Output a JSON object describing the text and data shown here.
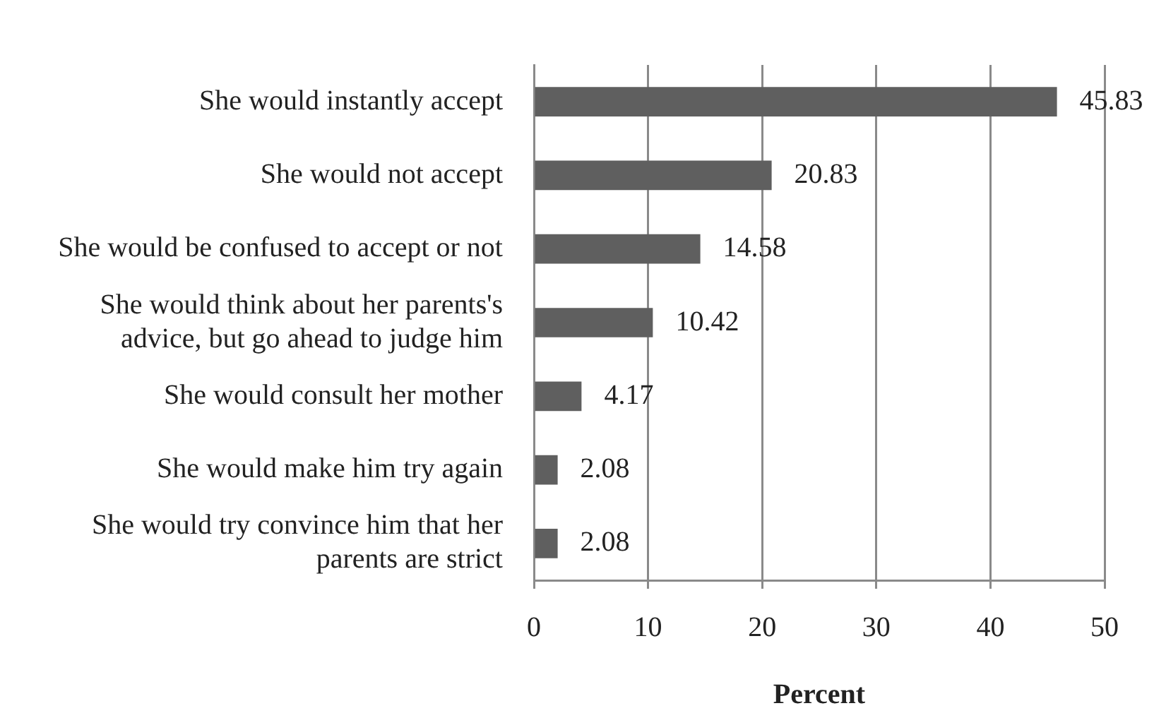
{
  "chart_data": {
    "type": "bar",
    "orientation": "horizontal",
    "xlabel": "Percent",
    "categories": [
      "She would instantly accept",
      "She would not accept",
      "She would be confused to accept or not",
      "She would think about her parents's advice, but go ahead to judge him",
      "She would consult her mother",
      "She would make him try again",
      "She would try convince him that her parents are strict"
    ],
    "values": [
      45.83,
      20.83,
      14.58,
      10.42,
      4.17,
      2.08,
      2.08
    ],
    "color": "#5f5f5f",
    "xlim": [
      0,
      50
    ],
    "xticks": [
      0,
      10,
      20,
      30,
      40,
      50
    ],
    "grid": "x",
    "data_labels": true
  }
}
